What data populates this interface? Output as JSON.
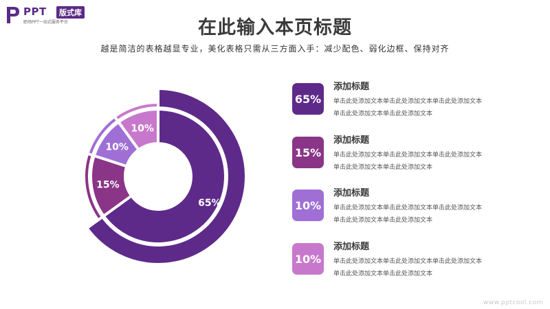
{
  "brand": {
    "word": "PPT",
    "badge": "版式库",
    "tagline": "职场PPT一站式服务平台",
    "color": "#5b2a86"
  },
  "header": {
    "title": "在此输入本页标题",
    "subtitle": "越是简洁的表格越显专业，美化表格只需从三方面入手：减少配色、弱化边框、保持对齐"
  },
  "chart_data": {
    "type": "pie",
    "style": "donut",
    "categories": [
      "",
      "",
      "",
      ""
    ],
    "values": [
      65,
      15,
      10,
      10
    ],
    "labels": [
      "65%",
      "15%",
      "10%",
      "10%"
    ],
    "colors": [
      "#5e2a8a",
      "#8a3587",
      "#9f6fd6",
      "#c878cc"
    ],
    "outer_ring_colors": [
      "#5e2a8a",
      "#8a3587",
      "#9f6fd6",
      "#c878cc"
    ],
    "title": "",
    "legend": "right"
  },
  "legend": {
    "items": [
      {
        "value": "65%",
        "title": "添加标题",
        "line1": "单击此处添加文本单击此处添加文本单击此处添加文本",
        "line2": "单击此处添加文本单击此处添加文本",
        "color": "#5e2a8a"
      },
      {
        "value": "15%",
        "title": "添加标题",
        "line1": "单击此处添加文本单击此处添加文本单击此处添加文本",
        "line2": "单击此处添加文本单击此处添加文本",
        "color": "#8a3587"
      },
      {
        "value": "10%",
        "title": "添加标题",
        "line1": "单击此处添加文本单击此处添加文本单击此处添加文本",
        "line2": "单击此处添加文本单击此处添加文本",
        "color": "#9f6fd6"
      },
      {
        "value": "10%",
        "title": "添加标题",
        "line1": "单击此处添加文本单击此处添加文本单击此处添加文本",
        "line2": "单击此处添加文本单击此处添加文本",
        "color": "#c878cc"
      }
    ]
  },
  "watermark": "www.pptcool.com"
}
